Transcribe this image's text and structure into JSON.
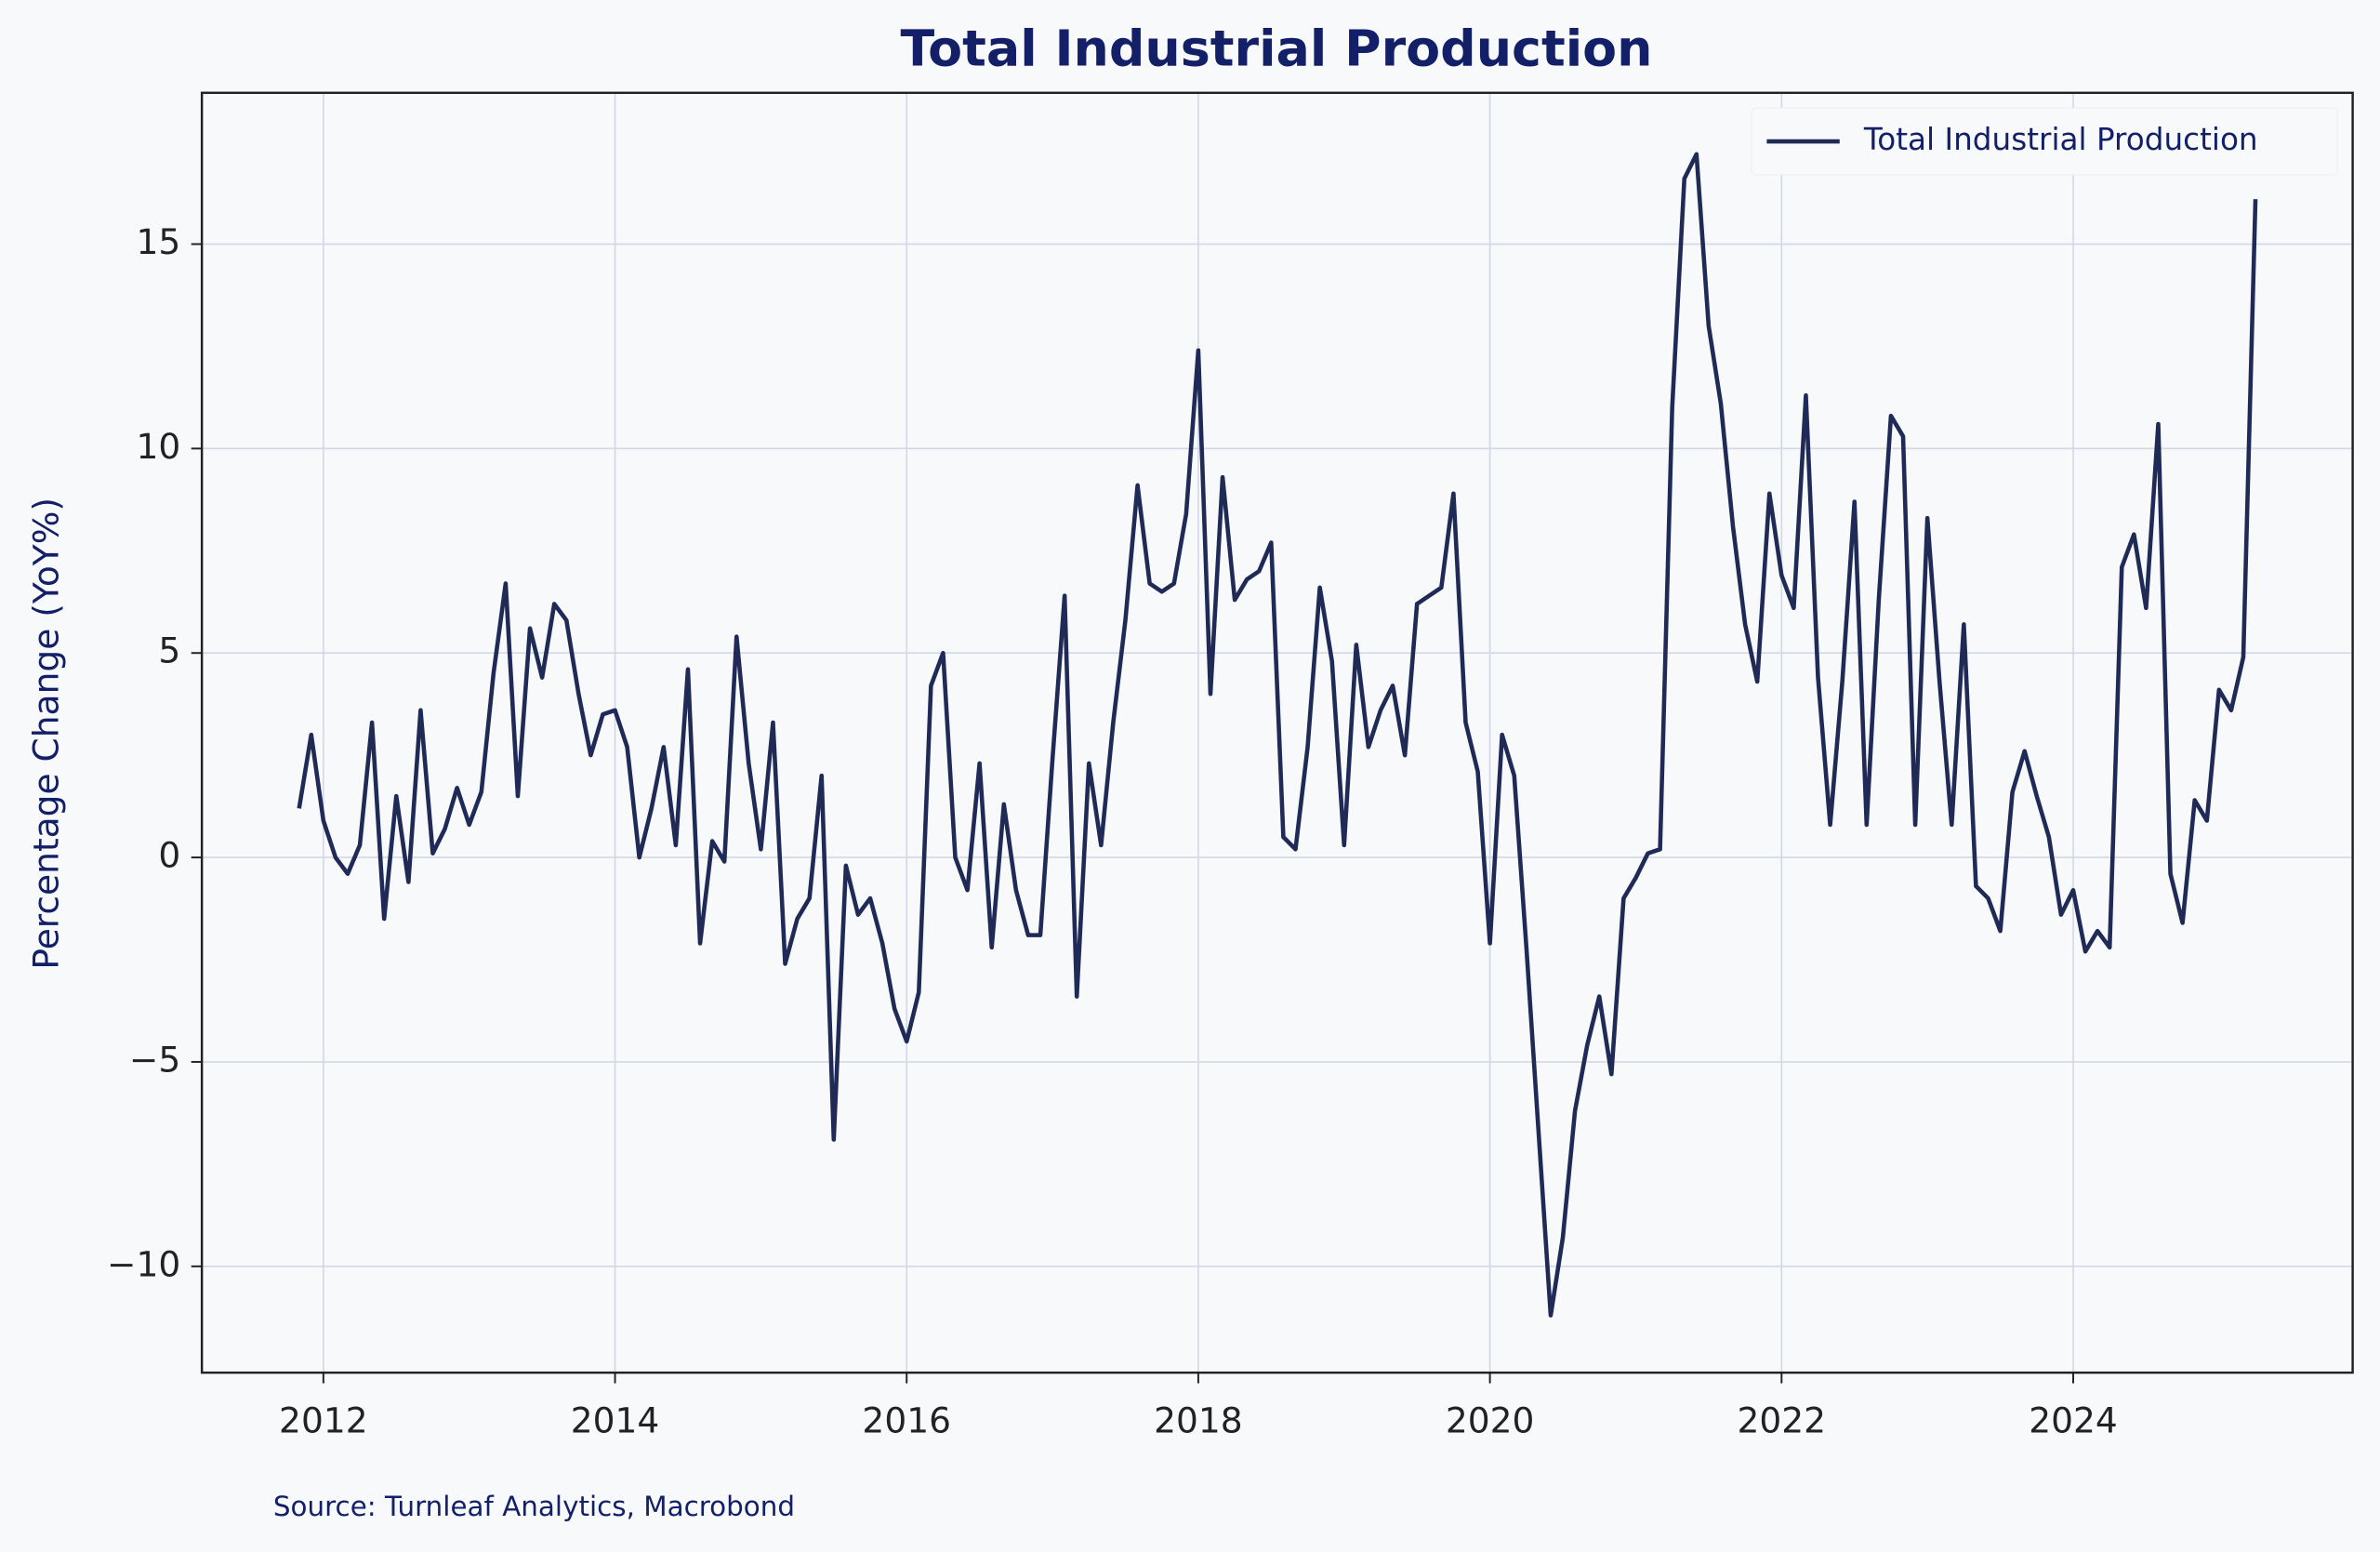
{
  "chart_data": {
    "type": "line",
    "title": "Total Industrial Production",
    "ylabel": "Percentage Change (YoY%)",
    "source": "Source: Turnleaf Analytics, Macrobond",
    "legend": "upper right",
    "grid": true,
    "x": [
      "2011-11",
      "2011-12",
      "2012-01",
      "2012-02",
      "2012-03",
      "2012-04",
      "2012-05",
      "2012-06",
      "2012-07",
      "2012-08",
      "2012-09",
      "2012-10",
      "2012-11",
      "2012-12",
      "2013-01",
      "2013-02",
      "2013-03",
      "2013-04",
      "2013-05",
      "2013-06",
      "2013-07",
      "2013-08",
      "2013-09",
      "2013-10",
      "2013-11",
      "2013-12",
      "2014-01",
      "2014-02",
      "2014-03",
      "2014-04",
      "2014-05",
      "2014-06",
      "2014-07",
      "2014-08",
      "2014-09",
      "2014-10",
      "2014-11",
      "2014-12",
      "2015-01",
      "2015-02",
      "2015-03",
      "2015-04",
      "2015-05",
      "2015-06",
      "2015-07",
      "2015-08",
      "2015-09",
      "2015-10",
      "2015-11",
      "2015-12",
      "2016-01",
      "2016-02",
      "2016-03",
      "2016-04",
      "2016-05",
      "2016-06",
      "2016-07",
      "2016-08",
      "2016-09",
      "2016-10",
      "2016-11",
      "2016-12",
      "2017-01",
      "2017-02",
      "2017-03",
      "2017-04",
      "2017-05",
      "2017-06",
      "2017-07",
      "2017-08",
      "2017-09",
      "2017-10",
      "2017-11",
      "2017-12",
      "2018-01",
      "2018-02",
      "2018-03",
      "2018-04",
      "2018-05",
      "2018-06",
      "2018-07",
      "2018-08",
      "2018-09",
      "2018-10",
      "2018-11",
      "2018-12",
      "2019-01",
      "2019-02",
      "2019-03",
      "2019-04",
      "2019-05",
      "2019-06",
      "2019-07",
      "2019-08",
      "2019-09",
      "2019-10",
      "2019-11",
      "2019-12",
      "2020-01",
      "2020-02",
      "2020-03",
      "2020-04",
      "2020-05",
      "2020-06",
      "2020-07",
      "2020-08",
      "2020-09",
      "2020-10",
      "2020-11",
      "2020-12",
      "2021-01",
      "2021-02",
      "2021-03",
      "2021-04",
      "2021-05",
      "2021-06",
      "2021-07",
      "2021-08",
      "2021-09",
      "2021-10",
      "2021-11",
      "2021-12",
      "2022-01",
      "2022-02",
      "2022-03",
      "2022-04",
      "2022-05",
      "2022-06",
      "2022-07",
      "2022-08",
      "2022-09",
      "2022-10",
      "2022-11",
      "2022-12",
      "2023-01",
      "2023-02",
      "2023-03",
      "2023-04",
      "2023-05",
      "2023-06",
      "2023-07",
      "2023-08",
      "2023-09",
      "2023-10",
      "2023-11",
      "2023-12",
      "2024-01",
      "2024-02",
      "2024-03",
      "2024-04",
      "2024-05",
      "2024-06",
      "2024-07",
      "2024-08",
      "2024-09",
      "2024-10",
      "2024-11",
      "2024-12",
      "2025-01",
      "2025-02",
      "2025-03",
      "2025-04"
    ],
    "series": [
      {
        "name": "Total Industrial Production",
        "color": "#1f2a56",
        "values": [
          1.2,
          3.0,
          0.9,
          0.0,
          -0.4,
          0.3,
          3.3,
          -1.5,
          1.5,
          -0.6,
          3.6,
          0.1,
          0.7,
          1.7,
          0.8,
          1.6,
          4.5,
          6.7,
          1.5,
          5.6,
          4.4,
          6.2,
          5.8,
          4.0,
          2.5,
          3.5,
          3.6,
          2.7,
          0.0,
          1.2,
          2.7,
          0.3,
          4.6,
          -2.1,
          0.4,
          -0.1,
          5.4,
          2.3,
          0.2,
          3.3,
          -2.6,
          -1.5,
          -1.0,
          2.0,
          -6.9,
          -0.2,
          -1.4,
          -1.0,
          -2.1,
          -3.7,
          -4.5,
          -3.3,
          4.2,
          5.0,
          0.0,
          -0.8,
          2.3,
          -2.2,
          1.3,
          -0.8,
          -1.9,
          -1.9,
          2.4,
          6.4,
          -3.4,
          2.3,
          0.3,
          3.3,
          5.8,
          9.1,
          6.7,
          6.5,
          6.7,
          8.4,
          12.4,
          4.0,
          9.3,
          6.3,
          6.8,
          7.0,
          7.7,
          0.5,
          0.2,
          2.7,
          6.6,
          4.8,
          0.3,
          5.2,
          2.7,
          3.6,
          4.2,
          2.5,
          6.2,
          6.4,
          6.6,
          8.9,
          3.3,
          2.1,
          -2.1,
          3.0,
          2.0,
          -2.2,
          -6.7,
          -11.2,
          -9.3,
          -6.2,
          -4.6,
          -3.4,
          -5.3,
          -1.0,
          -0.5,
          0.1,
          0.2,
          11.0,
          16.6,
          17.2,
          13.0,
          11.1,
          8.1,
          5.7,
          4.3,
          8.9,
          6.9,
          6.1,
          11.3,
          4.4,
          0.8,
          4.3,
          8.7,
          0.8,
          6.3,
          10.8,
          10.3,
          0.8,
          8.3,
          4.3,
          0.8,
          5.7,
          -0.7,
          -1.0,
          -1.8,
          1.6,
          2.6,
          1.5,
          0.5,
          -1.4,
          -0.8,
          -2.3,
          -1.8,
          -2.2,
          7.1,
          7.9,
          6.1,
          10.6,
          -0.4,
          -1.6,
          1.4,
          0.9,
          4.1,
          3.6,
          4.9,
          16.1
        ]
      }
    ],
    "xlim": [
      "2011-03",
      "2025-12"
    ],
    "xticks": [
      {
        "value": "2012-01",
        "label": "2012"
      },
      {
        "value": "2014-01",
        "label": "2014"
      },
      {
        "value": "2016-01",
        "label": "2016"
      },
      {
        "value": "2018-01",
        "label": "2018"
      },
      {
        "value": "2020-01",
        "label": "2020"
      },
      {
        "value": "2022-01",
        "label": "2022"
      },
      {
        "value": "2024-01",
        "label": "2024"
      }
    ],
    "ylim": [
      -12.6,
      18.7
    ],
    "yticks": [
      {
        "value": -10,
        "label": "−10"
      },
      {
        "value": -5,
        "label": "−5"
      },
      0,
      5,
      10,
      15
    ]
  }
}
